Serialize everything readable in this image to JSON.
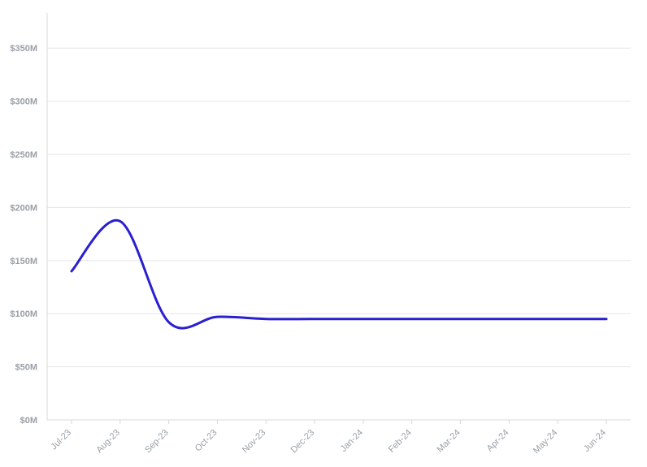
{
  "chart_data": {
    "type": "line",
    "title": "",
    "xlabel": "",
    "ylabel": "",
    "categories": [
      "Jul-23",
      "Aug-23",
      "Sep-23",
      "Oct-23",
      "Nov-23",
      "Dec-23",
      "Jan-24",
      "Feb-24",
      "Mar-24",
      "Apr-24",
      "May-24",
      "Jun-24"
    ],
    "y_ticks": [
      "$0M",
      "$50M",
      "$100M",
      "$150M",
      "$200M",
      "$250M",
      "$300M",
      "$350M"
    ],
    "ylim": [
      0,
      380
    ],
    "grid": "horizontal",
    "series": [
      {
        "color": "#2a1fd1",
        "values": [
          140,
          187,
          92,
          97,
          95,
          95,
          95,
          95,
          95,
          95,
          95,
          95
        ]
      }
    ]
  }
}
